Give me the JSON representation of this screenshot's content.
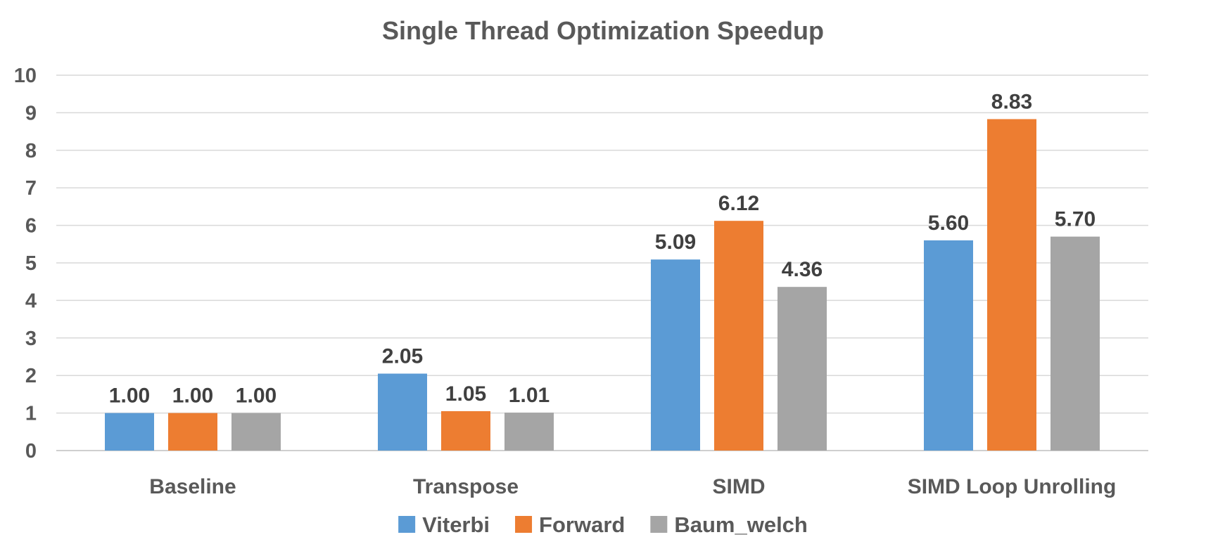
{
  "chart_data": {
    "type": "bar",
    "title": "Single Thread Optimization Speedup",
    "xlabel": "",
    "ylabel": "",
    "ylim": [
      0,
      10
    ],
    "yticks": [
      "0",
      "1",
      "2",
      "3",
      "4",
      "5",
      "6",
      "7",
      "8",
      "9",
      "10"
    ],
    "categories": [
      "Baseline",
      "Transpose",
      "SIMD",
      "SIMD Loop Unrolling"
    ],
    "series": [
      {
        "name": "Viterbi",
        "color": "#5b9bd5",
        "values": [
          1.0,
          2.05,
          5.09,
          5.6
        ],
        "labels": [
          "1.00",
          "2.05",
          "5.09",
          "5.60"
        ]
      },
      {
        "name": "Forward",
        "color": "#ed7d31",
        "values": [
          1.0,
          1.05,
          6.12,
          8.83
        ],
        "labels": [
          "1.00",
          "1.05",
          "6.12",
          "8.83"
        ]
      },
      {
        "name": "Baum_welch",
        "color": "#a5a5a5",
        "values": [
          1.0,
          1.01,
          4.36,
          5.7
        ],
        "labels": [
          "1.00",
          "1.01",
          "4.36",
          "5.70"
        ]
      }
    ],
    "grid": true,
    "legend_position": "bottom"
  }
}
